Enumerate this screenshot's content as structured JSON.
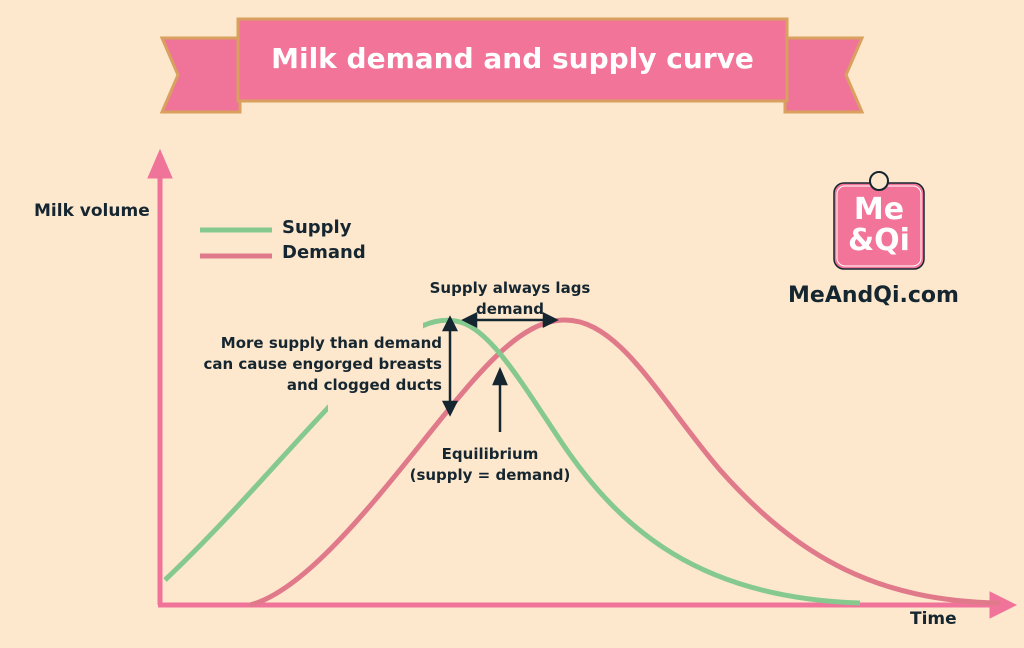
{
  "title": "Milk demand and supply curve",
  "axes": {
    "y_label": "Milk volume",
    "x_label": "Time"
  },
  "legend": [
    {
      "name": "Supply",
      "color": "#86c98f"
    },
    {
      "name": "Demand",
      "color": "#e07a8a"
    }
  ],
  "annotations": {
    "lag_line1": "Supply always lags",
    "lag_line2": "demand",
    "excess_line1": "More supply than demand",
    "excess_line2": "can cause engorged breasts",
    "excess_line3": "and clogged ducts",
    "equilibrium_line1": "Equilibrium",
    "equilibrium_line2": "(supply = demand)"
  },
  "logo": {
    "line1": "Me",
    "line2": "&Qi",
    "site": "MeAndQi.com"
  },
  "colors": {
    "background": "#fde8cd",
    "accent": "#f0749a",
    "banner_border": "#d9a060",
    "text": "#162630"
  }
}
